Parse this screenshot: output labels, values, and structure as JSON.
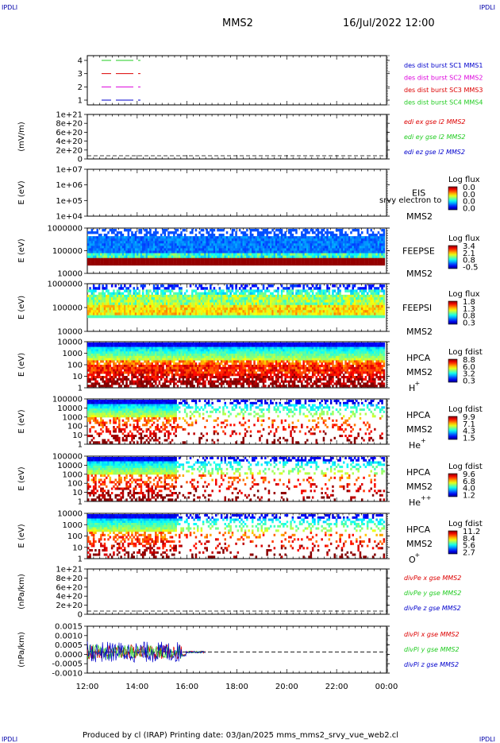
{
  "header": {
    "corner_left": "IPDLI",
    "corner_right": "IPDLI",
    "title": "MMS2",
    "datetime": "16/Jul/2022 12:00"
  },
  "footer": {
    "corner_left": "IPDLI",
    "corner_right": "IPDLI",
    "text": "Produced by cl (IRAP)   Printing date: 03/Jan/2025   mms_mms2_srvy_vue_web2.cl"
  },
  "time_axis": {
    "ticks": [
      "12:00",
      "14:00",
      "16:00",
      "18:00",
      "20:00",
      "22:00",
      "00:00"
    ]
  },
  "colors": {
    "red": "#dd0000",
    "green": "#22cc22",
    "blue": "#0000cc",
    "magenta": "#dd00dd"
  },
  "chart_data": [
    {
      "type": "line",
      "id": "burst",
      "ylabel": "",
      "yticks": [
        "4",
        "3",
        "2",
        "1"
      ],
      "ylim": [
        0.5,
        4.5
      ],
      "series": [
        {
          "name": "des dist burst SC1 MMS1",
          "color": "#0000cc",
          "y": 1
        },
        {
          "name": "des dist burst SC2 MMS2",
          "color": "#dd00dd",
          "y": 2
        },
        {
          "name": "des dist burst SC3 MMS3",
          "color": "#dd0000",
          "y": 3
        },
        {
          "name": "des dist burst SC4 MMS4",
          "color": "#22cc22",
          "y": 4
        }
      ]
    },
    {
      "type": "line",
      "id": "edi",
      "ylabel": "(mV/m)",
      "yticks": [
        "1e+21",
        "8e+20",
        "6e+20",
        "4e+20",
        "2e+20",
        "0"
      ],
      "ylim": [
        0,
        1e+21
      ],
      "dashed_zero": true,
      "series": [
        {
          "name": "edi ex gse l2 MMS2",
          "color": "#dd0000"
        },
        {
          "name": "edi ey gse l2 MMS2",
          "color": "#22cc22"
        },
        {
          "name": "edi ez gse l2 MMS2",
          "color": "#0000cc"
        }
      ]
    },
    {
      "type": "heatmap",
      "id": "eis",
      "ylabel": "E (eV)",
      "yticks": [
        "1e+07",
        "1e+06",
        "1e+05",
        "1e+04"
      ],
      "scale": "log",
      "labels": [
        "EIS",
        "MMS2"
      ],
      "overlay": "srvy electron to",
      "colorbar": {
        "title": "Log flux",
        "ticks": [
          "0.0",
          "0.0",
          "0.0",
          "0.0"
        ]
      }
    },
    {
      "type": "heatmap",
      "id": "feeps_e",
      "ylabel": "E (eV)",
      "yticks": [
        "1000000",
        "100000",
        "10000"
      ],
      "scale": "log",
      "labels": [
        "FEEPSE",
        "MMS2"
      ],
      "colorbar": {
        "title": "Log flux",
        "ticks": [
          "3.4",
          "2.1",
          "0.8",
          "-0.5"
        ]
      }
    },
    {
      "type": "heatmap",
      "id": "feeps_i",
      "ylabel": "E (eV)",
      "yticks": [
        "1000000",
        "100000",
        "10000"
      ],
      "scale": "log",
      "labels": [
        "FEEPSI",
        "MMS2"
      ],
      "colorbar": {
        "title": "Log flux",
        "ticks": [
          "1.8",
          "1.3",
          "0.8",
          "0.3"
        ]
      }
    },
    {
      "type": "heatmap",
      "id": "hpca_h",
      "ylabel": "E (eV)",
      "yticks": [
        "10000",
        "1000",
        "100",
        "10",
        "1"
      ],
      "scale": "log",
      "labels": [
        "HPCA",
        "MMS2"
      ],
      "species": "H",
      "charge": "+",
      "colorbar": {
        "title": "Log fdist",
        "ticks": [
          "8.8",
          "6.0",
          "3.2",
          "0.3"
        ]
      }
    },
    {
      "type": "heatmap",
      "id": "hpca_he",
      "ylabel": "E (eV)",
      "yticks": [
        "100000",
        "10000",
        "1000",
        "100",
        "10",
        "1"
      ],
      "scale": "log",
      "labels": [
        "HPCA",
        "MMS2"
      ],
      "species": "He",
      "charge": "+",
      "colorbar": {
        "title": "Log fdist",
        "ticks": [
          "9.9",
          "7.1",
          "4.3",
          "1.5"
        ]
      }
    },
    {
      "type": "heatmap",
      "id": "hpca_hepp",
      "ylabel": "E (eV)",
      "yticks": [
        "100000",
        "10000",
        "1000",
        "100",
        "10",
        "1"
      ],
      "scale": "log",
      "labels": [
        "HPCA",
        "MMS2"
      ],
      "species": "He",
      "charge": "++",
      "colorbar": {
        "title": "Log fdist",
        "ticks": [
          "9.6",
          "6.8",
          "4.0",
          "1.2"
        ]
      }
    },
    {
      "type": "heatmap",
      "id": "hpca_o",
      "ylabel": "E (eV)",
      "yticks": [
        "10000",
        "1000",
        "100",
        "10",
        "1"
      ],
      "scale": "log",
      "labels": [
        "HPCA",
        "MMS2"
      ],
      "species": "O",
      "charge": "+",
      "colorbar": {
        "title": "Log fdist",
        "ticks": [
          "11.2",
          "8.4",
          "5.6",
          "2.7"
        ]
      }
    },
    {
      "type": "line",
      "id": "divpe",
      "ylabel": "(nPa/km)",
      "yticks": [
        "1e+21",
        "8e+20",
        "6e+20",
        "4e+20",
        "2e+20",
        "0"
      ],
      "ylim": [
        0,
        1e+21
      ],
      "dashed_zero": true,
      "series": [
        {
          "name": "divPe x gse MMS2",
          "color": "#dd0000"
        },
        {
          "name": "divPe y gse MMS2",
          "color": "#22cc22"
        },
        {
          "name": "divPe z gse MMS2",
          "color": "#0000cc"
        }
      ]
    },
    {
      "type": "line",
      "id": "divpi",
      "ylabel": "(nPa/km)",
      "yticks": [
        "0.0015",
        "0.0010",
        "0.0005",
        "0.0000",
        "-0.0005",
        "-0.0010"
      ],
      "ylim": [
        -0.0013,
        0.0016
      ],
      "dashed_zero": true,
      "series": [
        {
          "name": "divPi x gse MMS2",
          "color": "#dd0000"
        },
        {
          "name": "divPi y gse MMS2",
          "color": "#22cc22"
        },
        {
          "name": "divPi z gse MMS2",
          "color": "#0000cc"
        }
      ]
    }
  ]
}
